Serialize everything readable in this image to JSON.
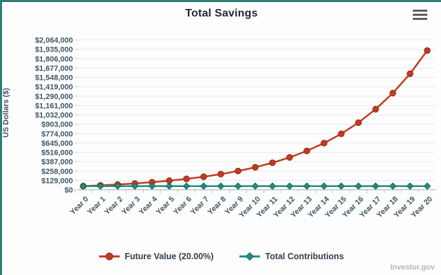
{
  "frame": {
    "watermark": "Investor.gov"
  },
  "colors": {
    "border_teal": "#2e7d74",
    "future_value": "#c13a21",
    "future_value_stroke": "#8e2a18",
    "contributions": "#1f8e81",
    "contributions_stroke": "#14695f",
    "grid": "#e8e8e8",
    "axis_line": "#a8a8a8",
    "tick": "#c9c9c9",
    "axis_text": "#3f5566",
    "legend_text": "#2f4050",
    "title_text": "#22282e",
    "watermark_text": "#b5b5b5"
  },
  "chart_data": {
    "type": "line",
    "title": "Total Savings",
    "xlabel": "",
    "ylabel": "US Dollars ($)",
    "categories": [
      "Year 0",
      "Year 1",
      "Year 2",
      "Year 3",
      "Year 4",
      "Year 5",
      "Year 6",
      "Year 7",
      "Year 8",
      "Year 9",
      "Year 10",
      "Year 11",
      "Year 12",
      "Year 13",
      "Year 14",
      "Year 15",
      "Year 16",
      "Year 17",
      "Year 18",
      "Year 19",
      "Year 20"
    ],
    "series": [
      {
        "name": "Future Value (20.00%)",
        "marker": "circle",
        "color": "#c13a21",
        "stroke": "#8e2a18",
        "values": [
          50000,
          60000,
          72000,
          86400,
          103680,
          124416,
          149299,
          179159,
          214991,
          257989,
          309587,
          371504,
          445805,
          534966,
          641959,
          770351,
          924421,
          1109306,
          1331167,
          1597400,
          1916880
        ]
      },
      {
        "name": "Total Contributions",
        "marker": "diamond",
        "color": "#1f8e81",
        "stroke": "#14695f",
        "values": [
          50000,
          50000,
          50000,
          50000,
          50000,
          50000,
          50000,
          50000,
          50000,
          50000,
          50000,
          50000,
          50000,
          50000,
          50000,
          50000,
          50000,
          50000,
          50000,
          50000,
          50000
        ]
      }
    ],
    "ylim": [
      0,
      2064000
    ],
    "ytick_step": 129000,
    "ytick_labels": [
      "$0",
      "$129,000",
      "$258,000",
      "$387,000",
      "$516,000",
      "$645,000",
      "$774,000",
      "$903,000",
      "$1,032,000",
      "$1,161,000",
      "$1,290,000",
      "$1,419,000",
      "$1,548,000",
      "$1,677,000",
      "$1,806,000",
      "$1,935,000",
      "$2,064,000"
    ],
    "grid": true,
    "legend_position": "bottom"
  }
}
